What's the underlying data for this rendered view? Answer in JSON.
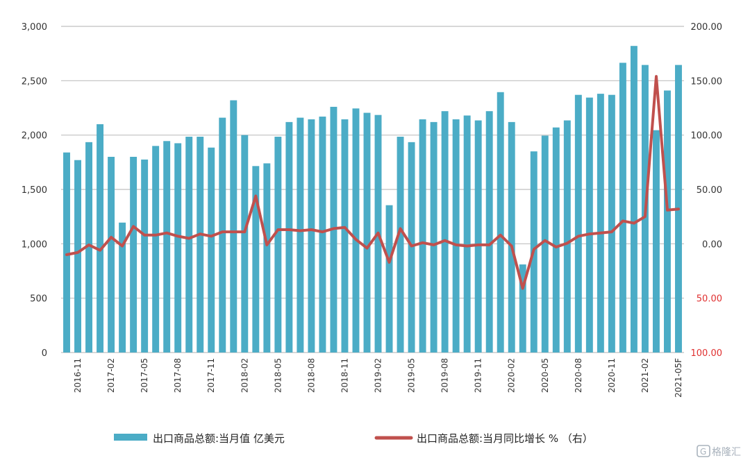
{
  "chart_data": {
    "type": "bar",
    "categories": [
      "2016-10",
      "2016-11",
      "2016-12",
      "2017-01",
      "2017-02",
      "2017-03",
      "2017-04",
      "2017-05",
      "2017-06",
      "2017-07",
      "2017-08",
      "2017-09",
      "2017-10",
      "2017-11",
      "2017-12",
      "2018-01",
      "2018-02",
      "2018-03",
      "2018-04",
      "2018-05",
      "2018-06",
      "2018-07",
      "2018-08",
      "2018-09",
      "2018-10",
      "2018-11",
      "2018-12",
      "2019-01",
      "2019-02",
      "2019-03",
      "2019-04",
      "2019-05",
      "2019-06",
      "2019-07",
      "2019-08",
      "2019-09",
      "2019-10",
      "2019-11",
      "2019-12",
      "2020-01",
      "2020-02",
      "2020-03",
      "2020-04",
      "2020-05",
      "2020-06",
      "2020-07",
      "2020-08",
      "2020-09",
      "2020-10",
      "2020-11",
      "2020-12",
      "2021-01",
      "2021-02",
      "2021-03",
      "2021-04",
      "2021-05F"
    ],
    "x_tick_labels": [
      "2016-11",
      "2017-02",
      "2017-05",
      "2017-08",
      "2017-11",
      "2018-02",
      "2018-05",
      "2018-08",
      "2018-11",
      "2019-02",
      "2019-05",
      "2019-08",
      "2019-11",
      "2020-02",
      "2020-05",
      "2020-08",
      "2020-11",
      "2021-02",
      "2021-05F"
    ],
    "series": [
      {
        "name": "出口商品总额:当月值 亿美元",
        "axis": "left",
        "kind": "bar",
        "color": "#4BACC6",
        "values": [
          1840,
          1770,
          1935,
          2100,
          1800,
          1195,
          1800,
          1775,
          1900,
          1945,
          1925,
          1985,
          1985,
          1885,
          2160,
          2320,
          2000,
          1715,
          1740,
          1985,
          2120,
          2160,
          2145,
          2170,
          2260,
          2145,
          2245,
          2205,
          2185,
          1355,
          1985,
          1935,
          2145,
          2120,
          2220,
          2145,
          2180,
          2135,
          2220,
          2395,
          2120,
          810,
          1850,
          1995,
          2070,
          2135,
          2370,
          2345,
          2380,
          2370,
          2665,
          2820,
          2645,
          2045,
          2410,
          2645
        ]
      },
      {
        "name": "出口商品总额:当月同比增长 % （右）",
        "axis": "right",
        "kind": "line",
        "color": "#C0504D",
        "values": [
          -10,
          -8,
          -1,
          -6,
          6,
          -2,
          16,
          8,
          8,
          10,
          7,
          5,
          9,
          7,
          11,
          11,
          11,
          44,
          -1,
          13,
          13,
          12,
          13,
          11,
          14,
          15,
          4,
          -4,
          10,
          -17,
          14,
          -2,
          1,
          -1,
          3,
          -1,
          -2,
          -1,
          -1,
          8,
          -2,
          -41,
          -5,
          3,
          -3,
          0.5,
          7,
          9,
          10,
          11,
          21,
          19,
          25,
          154,
          31,
          32
        ]
      }
    ],
    "left_axis": {
      "ylim": [
        0,
        3000
      ],
      "ticks": [
        "0",
        "500",
        "1,000",
        "1,500",
        "2,000",
        "2,500",
        "3,000"
      ]
    },
    "right_axis": {
      "ylim": [
        -100,
        200
      ],
      "ticks": [
        {
          "value": -100,
          "label": "100.00",
          "color": "#e03030"
        },
        {
          "value": -50,
          "label": "50.00",
          "color": "#e03030"
        },
        {
          "value": 0,
          "label": "0.00",
          "color": "#333333"
        },
        {
          "value": 50,
          "label": "50.00",
          "color": "#333333"
        },
        {
          "value": 100,
          "label": "100.00",
          "color": "#333333"
        },
        {
          "value": 150,
          "label": "150.00",
          "color": "#333333"
        },
        {
          "value": 200,
          "label": "200.00",
          "color": "#333333"
        }
      ]
    },
    "legend": {
      "placement": "bottom",
      "bar_label": "出口商品总额:当月值 亿美元",
      "line_label": "出口商品总额:当月同比增长 % （右）"
    },
    "grid": true,
    "title": "",
    "xlabel": "",
    "ylabel": ""
  },
  "watermark": {
    "text": "格隆汇",
    "color": "#9aa5b1"
  },
  "colors": {
    "bar": "#4BACC6",
    "line": "#C0504D",
    "grid": "#bfbfbf",
    "axis_text": "#333333",
    "negative_tick": "#e03030"
  }
}
